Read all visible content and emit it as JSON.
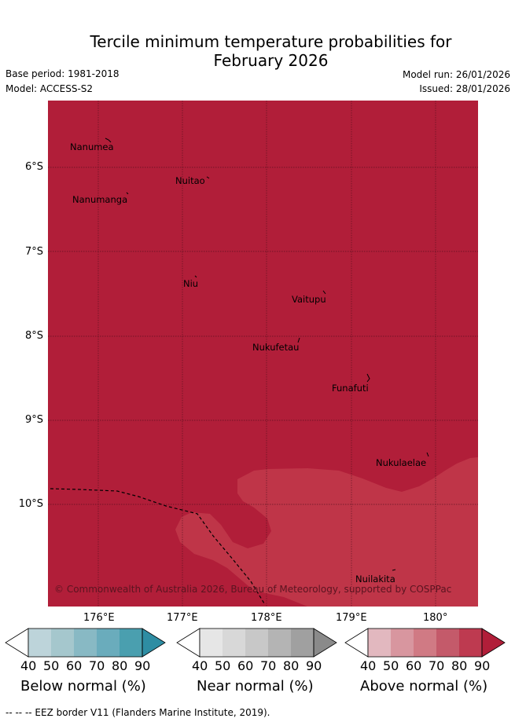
{
  "title": {
    "line1": "Tercile minimum temperature probabilities for",
    "line2": "February 2026"
  },
  "meta": {
    "base_period": "Base period: 1981-2018",
    "model": "Model: ACCESS-S2",
    "model_run": "Model run: 26/01/2026",
    "issued": "Issued: 28/01/2026"
  },
  "map": {
    "background_color": "#b11e39",
    "overlay_color": "#bf3548",
    "lat_labels": [
      "6°S",
      "7°S",
      "8°S",
      "9°S",
      "10°S"
    ],
    "lon_labels": [
      "176°E",
      "177°E",
      "178°E",
      "179°E",
      "180°"
    ],
    "places": [
      "Nanumea",
      "Nuitao",
      "Nanumanga",
      "Niu",
      "Vaitupu",
      "Nukufetau",
      "Funafuti",
      "Nukulaelae",
      "Nuilakita"
    ],
    "copyright": "© Commonwealth of Australia 2026, Bureau of Meteorology, supported by COSPPac"
  },
  "colorbars": [
    {
      "title": "Below normal (%)",
      "ticks": [
        "40",
        "50",
        "60",
        "70",
        "80",
        "90"
      ],
      "colors": [
        "#ffffff",
        "#bdd4da",
        "#a5c7cd",
        "#88b9c4",
        "#6aacbc",
        "#4a9faf",
        "#2e8da3"
      ]
    },
    {
      "title": "Near normal (%)",
      "ticks": [
        "40",
        "50",
        "60",
        "70",
        "80",
        "90"
      ],
      "colors": [
        "#ffffff",
        "#e6e6e6",
        "#d8d8d8",
        "#c8c8c8",
        "#b4b4b4",
        "#a0a0a0",
        "#8a8a8a"
      ]
    },
    {
      "title": "Above normal (%)",
      "ticks": [
        "40",
        "50",
        "60",
        "70",
        "80",
        "90"
      ],
      "colors": [
        "#ffffff",
        "#e2b8bf",
        "#d8969f",
        "#d07a84",
        "#c45a6a",
        "#be3a50",
        "#b11e39"
      ]
    }
  ],
  "footer": "--  --  -- EEZ border V11 (Flanders Marine Institute, 2019)."
}
